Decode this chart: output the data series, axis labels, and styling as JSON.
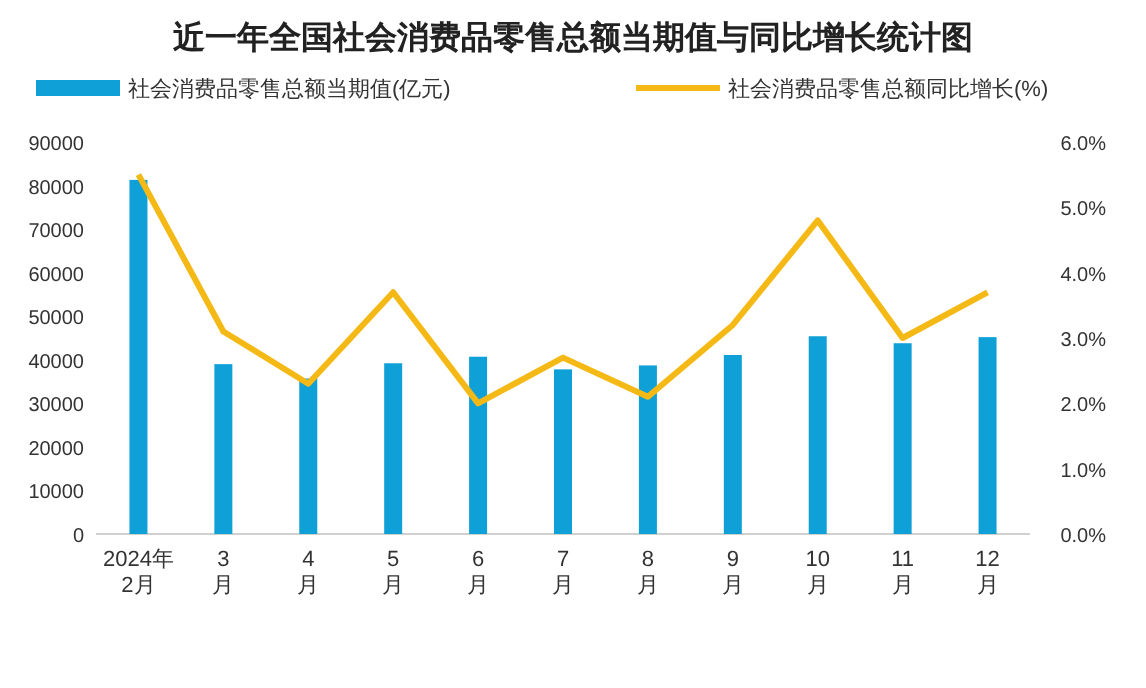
{
  "chart_data": {
    "type": "bar",
    "title": "近一年全国社会消费品零售总额当期值与同比增长统计图",
    "categories": [
      "2024年\n2月",
      "3\n月",
      "4\n月",
      "5\n月",
      "6\n月",
      "7\n月",
      "8\n月",
      "9\n月",
      "10\n月",
      "11\n月",
      "12\n月"
    ],
    "series": [
      {
        "name": "社会消费品零售总额当期值(亿元)",
        "color": "#0fa0d8",
        "values": [
          81300,
          39000,
          35700,
          39200,
          40700,
          37800,
          38700,
          41100,
          45400,
          43800,
          45200
        ]
      },
      {
        "name": "社会消费品零售总额同比增长(%)",
        "type": "line",
        "axis": "y2",
        "color": "#f5b915",
        "values": [
          5.5,
          3.1,
          2.3,
          3.7,
          2.0,
          2.7,
          2.1,
          3.2,
          4.8,
          3.0,
          3.7
        ]
      }
    ],
    "ylim": [
      0,
      90000
    ],
    "yticks": [
      0,
      10000,
      20000,
      30000,
      40000,
      50000,
      60000,
      70000,
      80000,
      90000
    ],
    "y2lim": [
      0,
      6
    ],
    "y2ticks": [
      {
        "value": 0,
        "label": "0.0%"
      },
      {
        "value": 1,
        "label": "1.0%"
      },
      {
        "value": 2,
        "label": "2.0%"
      },
      {
        "value": 3,
        "label": "3.0%"
      },
      {
        "value": 4,
        "label": "4.0%"
      },
      {
        "value": 5,
        "label": "5.0%"
      },
      {
        "value": 6,
        "label": "6.0%"
      }
    ],
    "legend": "top",
    "grid": false,
    "marker": "none",
    "line_style": "solid"
  }
}
